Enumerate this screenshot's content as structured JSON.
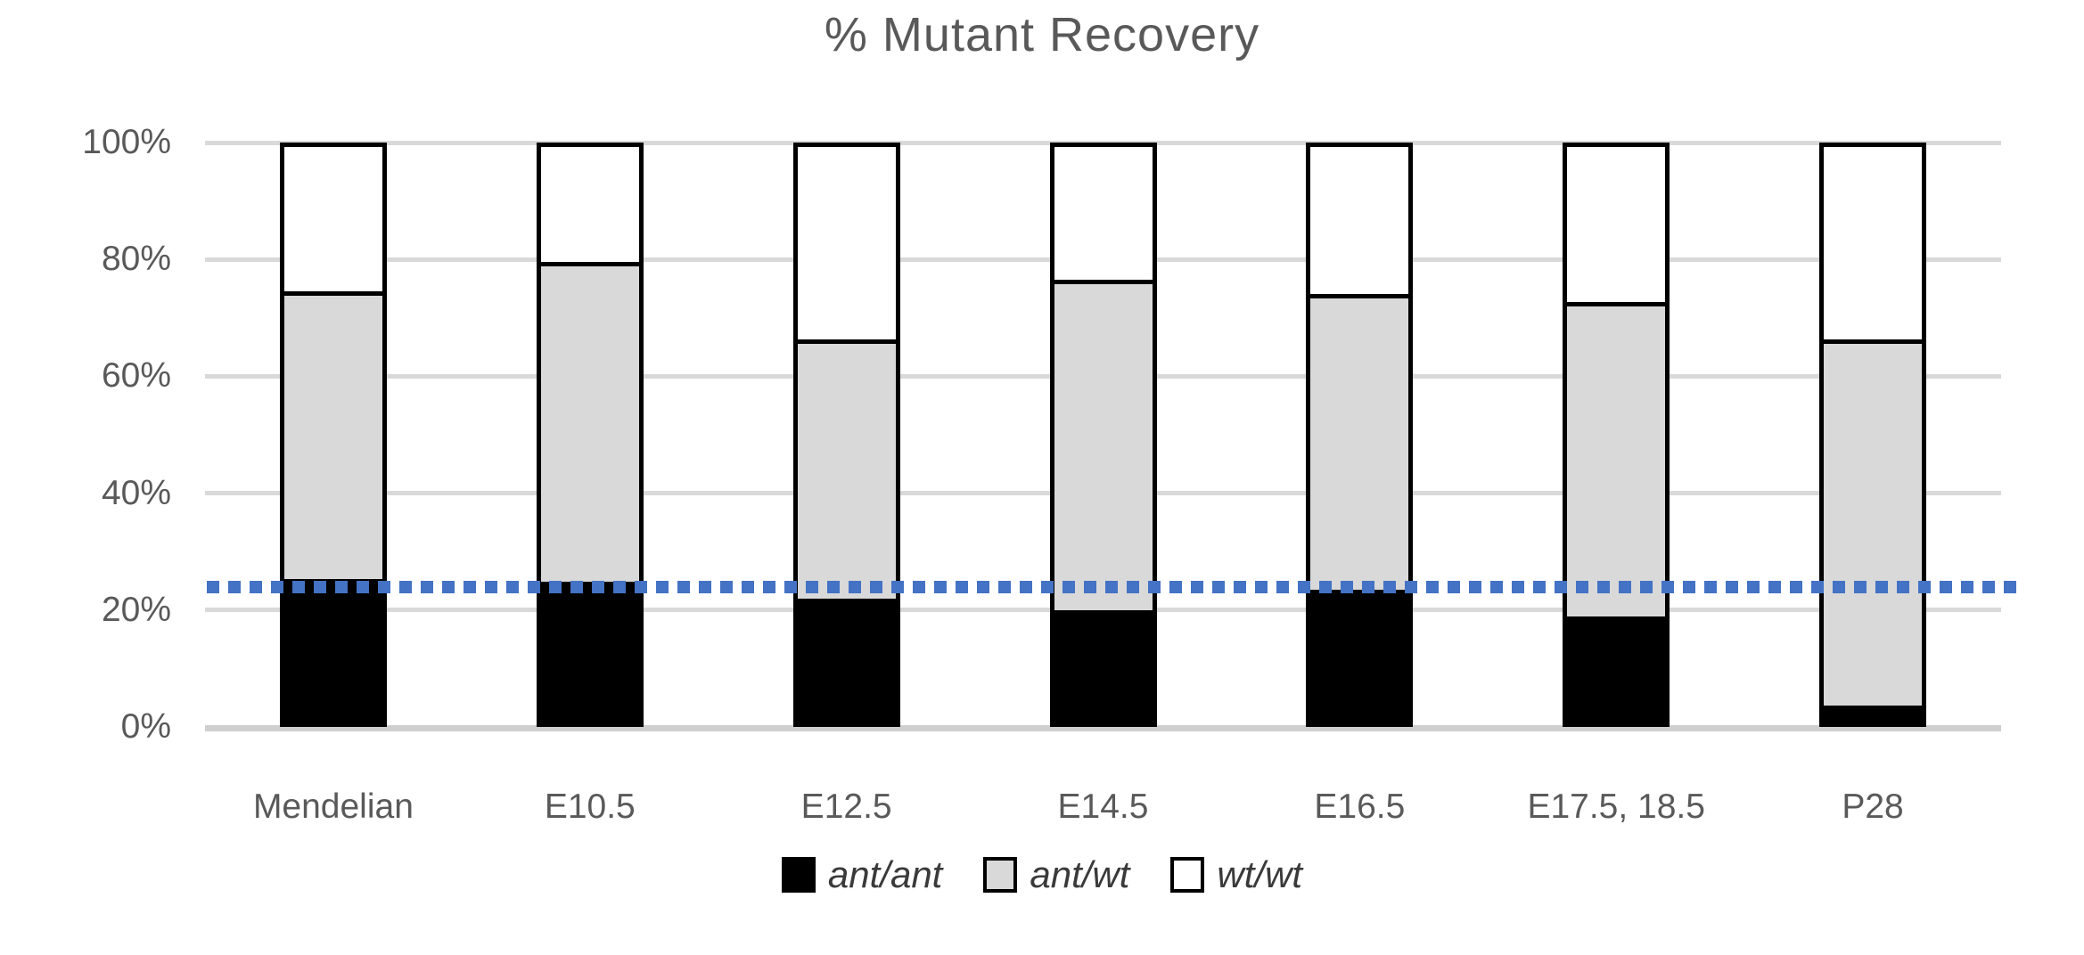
{
  "title": "% Mutant Recovery",
  "colors": {
    "title_text": "#595959",
    "axis_text": "#595959",
    "legend_text": "#3a3a3a",
    "gridline": "#d9d9d9",
    "zero_axis_line": "#cfcfcf",
    "bar_border": "#000000",
    "ant_ant_fill": "#000000",
    "ant_wt_fill": "#d9d9d9",
    "wt_wt_fill": "#ffffff",
    "reference_line": "#4472c4"
  },
  "chart_data": {
    "type": "bar",
    "stacked": true,
    "title": "% Mutant Recovery",
    "categories": [
      "Mendelian",
      "E10.5",
      "E12.5",
      "E14.5",
      "E16.5",
      "E17.5, 18.5",
      "P28"
    ],
    "series": [
      {
        "name": "ant/ant",
        "color": "#000000",
        "values": [
          25,
          24.5,
          21.5,
          19.5,
          23,
          18.5,
          3
        ]
      },
      {
        "name": "ant/wt",
        "color": "#d9d9d9",
        "values": [
          50,
          55.5,
          45,
          57.5,
          51.5,
          54.5,
          63.5
        ]
      },
      {
        "name": "wt/wt",
        "color": "#ffffff",
        "values": [
          25,
          20,
          33.5,
          23,
          25.5,
          27,
          33.5
        ]
      }
    ],
    "y_axis": {
      "ticks": [
        "0%",
        "20%",
        "40%",
        "60%",
        "80%",
        "100%"
      ],
      "tick_values": [
        0,
        20,
        40,
        60,
        80,
        100
      ],
      "min": 0,
      "max": 100
    },
    "reference_line": {
      "value": 24,
      "style": "dotted",
      "color": "#4472c4"
    },
    "grid": true,
    "legend_position": "bottom",
    "legend": [
      "ant/ant",
      "ant/wt",
      "wt/wt"
    ]
  }
}
